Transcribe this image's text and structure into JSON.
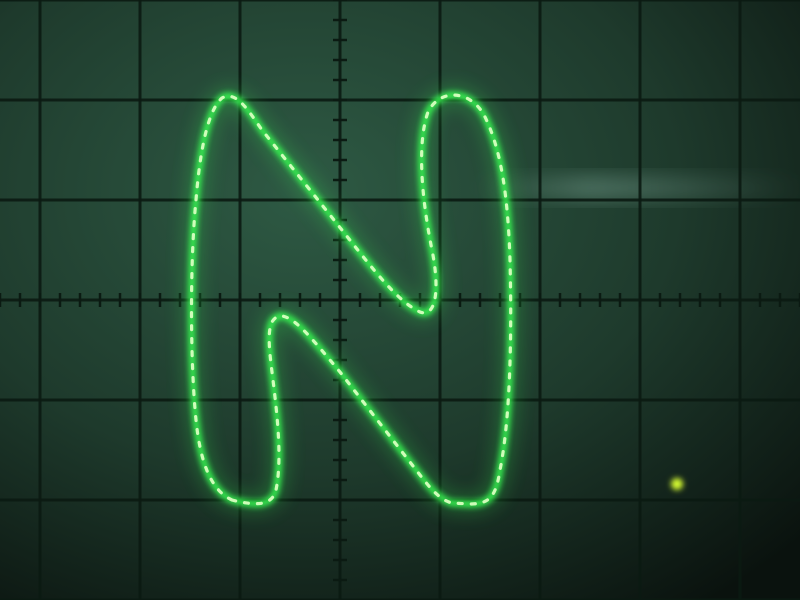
{
  "scene": {
    "subject": "oscilloscope-screen",
    "trace_shape": "letter-N",
    "graticule": {
      "major_divisions_x": 8,
      "major_divisions_y": 6,
      "minor_ticks_per_division": 5
    },
    "colors": {
      "screen_dark": "#0a120e",
      "screen_mid": "#1e3a2c",
      "screen_light": "#2e5a44",
      "grid_line": "#0b1a12",
      "trace_core": "#d8ffc0",
      "trace_glow": "#38ff52",
      "stray_spot": "#d8ff30",
      "reflection": "#7fa898"
    }
  }
}
